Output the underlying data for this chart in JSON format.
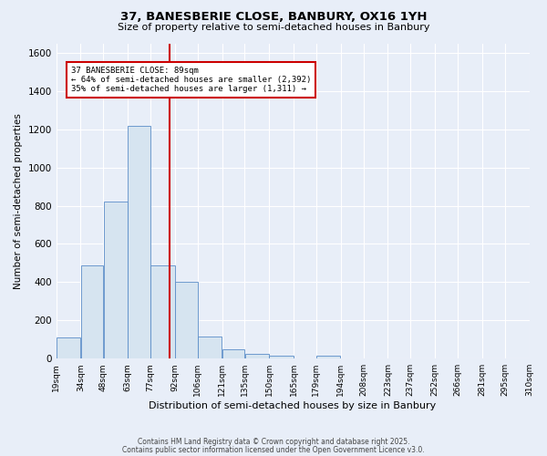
{
  "title1": "37, BANESBERIE CLOSE, BANBURY, OX16 1YH",
  "title2": "Size of property relative to semi-detached houses in Banbury",
  "xlabel": "Distribution of semi-detached houses by size in Banbury",
  "ylabel": "Number of semi-detached properties",
  "bin_edges": [
    19,
    34,
    48,
    63,
    77,
    92,
    106,
    121,
    135,
    150,
    165,
    179,
    194,
    208,
    223,
    237,
    252,
    266,
    281,
    295,
    310
  ],
  "bar_heights": [
    110,
    490,
    820,
    1220,
    490,
    400,
    115,
    50,
    25,
    15,
    0,
    15,
    0,
    0,
    0,
    0,
    0,
    0,
    0,
    0
  ],
  "property_size": 89,
  "property_label": "37 BANESBERIE CLOSE: 89sqm",
  "pct_smaller": 64,
  "n_smaller": 2392,
  "pct_larger": 35,
  "n_larger": 1311,
  "bar_color": "#d6e4f0",
  "bar_edge_color": "#5b8dc8",
  "vline_color": "#cc0000",
  "annotation_box_color": "#cc0000",
  "background_color": "#e8eef8",
  "grid_color": "#ffffff",
  "ylim": [
    0,
    1650
  ],
  "yticks": [
    0,
    200,
    400,
    600,
    800,
    1000,
    1200,
    1400,
    1600
  ],
  "tick_labels": [
    "19sqm",
    "34sqm",
    "48sqm",
    "63sqm",
    "77sqm",
    "92sqm",
    "106sqm",
    "121sqm",
    "135sqm",
    "150sqm",
    "165sqm",
    "179sqm",
    "194sqm",
    "208sqm",
    "223sqm",
    "237sqm",
    "252sqm",
    "266sqm",
    "281sqm",
    "295sqm",
    "310sqm"
  ],
  "footer1": "Contains HM Land Registry data © Crown copyright and database right 2025.",
  "footer2": "Contains public sector information licensed under the Open Government Licence v3.0."
}
